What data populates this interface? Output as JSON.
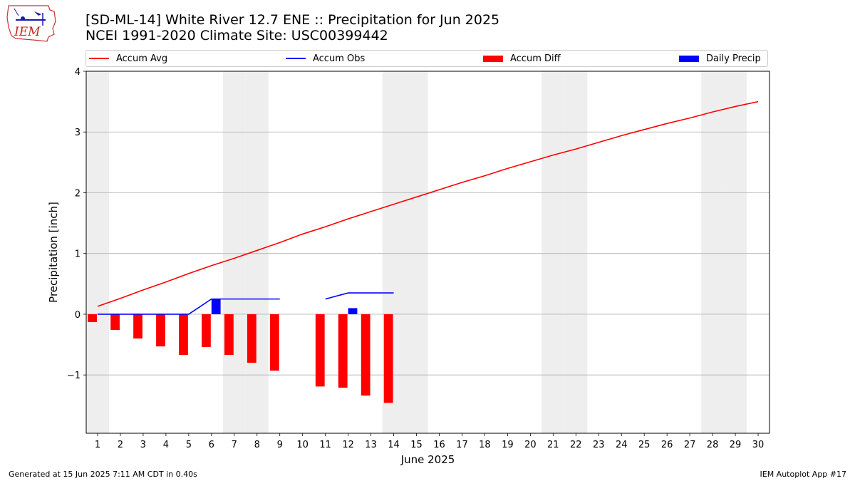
{
  "header": {
    "title_line1": "[SD-ML-14] White River 12.7 ENE :: Precipitation for Jun 2025",
    "title_line2": "NCEI 1991-2020 Climate Site: USC00399442",
    "logo_text": "IEM"
  },
  "legend": {
    "accum_avg": "Accum Avg",
    "accum_obs": "Accum Obs",
    "accum_diff": "Accum Diff",
    "daily_precip": "Daily Precip"
  },
  "footer": {
    "generated": "Generated at 15 Jun 2025 7:11 AM CDT in 0.40s",
    "app": "IEM Autoplot App #17"
  },
  "colors": {
    "accum_avg": "#ff0000",
    "accum_obs": "#0000ff",
    "accum_diff": "#ff0000",
    "daily_precip": "#0000ff",
    "weekend_shade": "#eeeeee",
    "grid": "#b0b0b0"
  },
  "chart_data": {
    "type": "bar",
    "xlabel": "June 2025",
    "ylabel": "Precipitation [inch]",
    "xlim": [
      0.5,
      30.5
    ],
    "ylim": [
      -1.96,
      4.0
    ],
    "yticks": [
      -1,
      0,
      1,
      2,
      3,
      4
    ],
    "ytick_labels": [
      "−1",
      "0",
      "1",
      "2",
      "3",
      "4"
    ],
    "days": [
      1,
      2,
      3,
      4,
      5,
      6,
      7,
      8,
      9,
      10,
      11,
      12,
      13,
      14,
      15,
      16,
      17,
      18,
      19,
      20,
      21,
      22,
      23,
      24,
      25,
      26,
      27,
      28,
      29,
      30
    ],
    "shaded_days": [
      1,
      7,
      8,
      14,
      15,
      21,
      22,
      28,
      29
    ],
    "grid": "y",
    "legend_position": "top",
    "series": [
      {
        "name": "Accum Avg",
        "type": "line",
        "days": [
          1,
          2,
          3,
          4,
          5,
          6,
          7,
          8,
          9,
          10,
          11,
          12,
          13,
          14,
          15,
          16,
          17,
          18,
          19,
          20,
          21,
          22,
          23,
          24,
          25,
          26,
          27,
          28,
          29,
          30
        ],
        "values": [
          0.13,
          0.26,
          0.4,
          0.53,
          0.67,
          0.8,
          0.92,
          1.05,
          1.18,
          1.32,
          1.44,
          1.57,
          1.69,
          1.81,
          1.93,
          2.05,
          2.17,
          2.28,
          2.4,
          2.51,
          2.62,
          2.72,
          2.83,
          2.94,
          3.04,
          3.14,
          3.23,
          3.33,
          3.42,
          3.5
        ]
      },
      {
        "name": "Accum Obs",
        "type": "line",
        "segments": [
          {
            "days": [
              1,
              2,
              3,
              4,
              5,
              6,
              7,
              8,
              9
            ],
            "values": [
              0,
              0,
              0,
              0,
              0,
              0.25,
              0.25,
              0.25,
              0.25
            ]
          },
          {
            "days": [
              11,
              12,
              13,
              14
            ],
            "values": [
              0.25,
              0.35,
              0.35,
              0.35
            ]
          }
        ]
      },
      {
        "name": "Accum Diff",
        "type": "bar",
        "days": [
          1,
          2,
          3,
          4,
          5,
          6,
          7,
          8,
          9,
          11,
          12,
          13,
          14
        ],
        "values": [
          -0.13,
          -0.26,
          -0.4,
          -0.53,
          -0.67,
          -0.54,
          -0.67,
          -0.8,
          -0.93,
          -1.19,
          -1.21,
          -1.34,
          -1.46
        ]
      },
      {
        "name": "Daily Precip",
        "type": "bar",
        "days": [
          6,
          12
        ],
        "values": [
          0.25,
          0.1
        ]
      }
    ]
  }
}
